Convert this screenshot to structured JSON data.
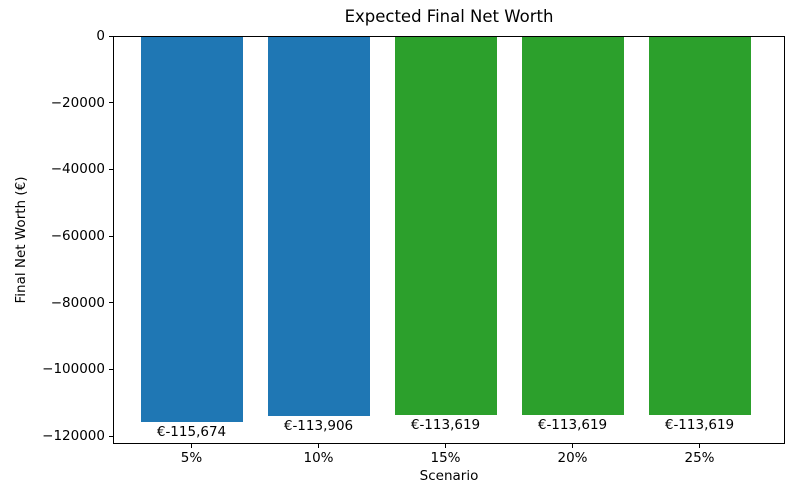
{
  "chart_data": {
    "type": "bar",
    "title": "Expected Final Net Worth",
    "xlabel": "Scenario",
    "ylabel": "Final Net Worth (€)",
    "categories": [
      "5%",
      "10%",
      "15%",
      "20%",
      "25%"
    ],
    "values": [
      -115674,
      -113906,
      -113619,
      -113619,
      -113619
    ],
    "bar_labels": [
      "€-115,674",
      "€-113,906",
      "€-113,619",
      "€-113,619",
      "€-113,619"
    ],
    "bar_colors": [
      "#1f77b4",
      "#1f77b4",
      "#2ca02c",
      "#2ca02c",
      "#2ca02c"
    ],
    "yticks": [
      0,
      -20000,
      -40000,
      -60000,
      -80000,
      -100000,
      -120000
    ],
    "ytick_labels": [
      "0",
      "−20000",
      "−40000",
      "−60000",
      "−80000",
      "−100000",
      "−120000"
    ],
    "ylim": [
      -122400,
      0
    ],
    "grid": false,
    "legend": null,
    "background_color": "#ffffff",
    "text_color": "#000000"
  }
}
